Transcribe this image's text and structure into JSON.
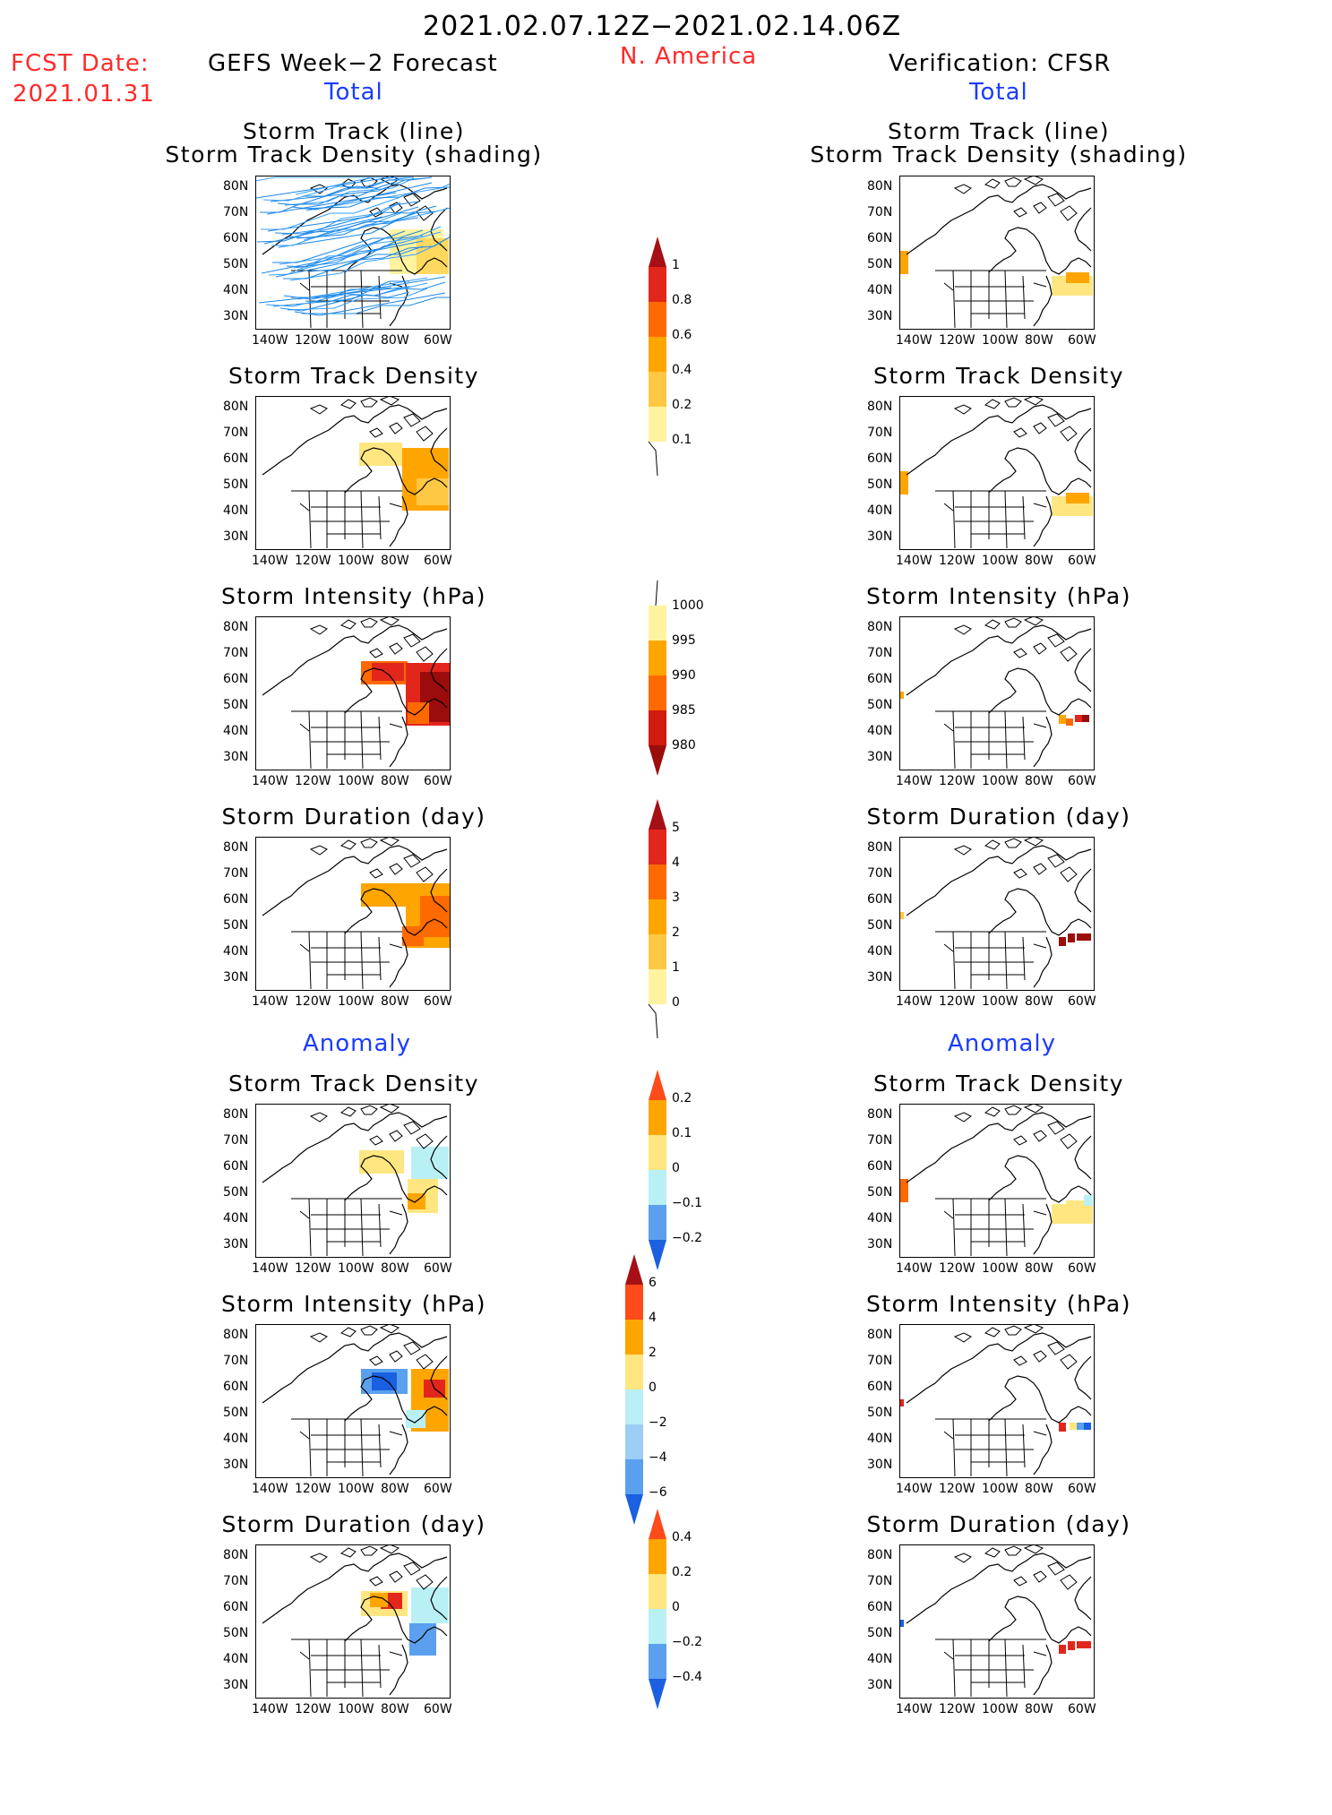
{
  "header": {
    "date_range": "2021.02.07.12Z−2021.02.14.06Z",
    "region": "N. America",
    "fcst_label": "FCST Date:",
    "fcst_date": "2021.01.31",
    "left_title": "GEFS Week−2 Forecast",
    "right_title": "Verification: CFSR",
    "left_total": "Total",
    "right_total": "Total",
    "left_anomaly": "Anomaly",
    "right_anomaly": "Anomaly"
  },
  "panels": {
    "track_title_1": "Storm Track (line)",
    "track_title_2": "Storm Track Density (shading)",
    "density": "Storm Track Density",
    "intensity": "Storm Intensity (hPa)",
    "duration": "Storm Duration (day)"
  },
  "axes": {
    "lat": [
      "80N",
      "70N",
      "60N",
      "50N",
      "40N",
      "30N"
    ],
    "lon": [
      "140W",
      "120W",
      "100W",
      "80W",
      "60W"
    ]
  },
  "colorbars": {
    "density_total": {
      "labels": [
        "1",
        "0.8",
        "0.6",
        "0.4",
        "0.2",
        "0.1"
      ],
      "colors": [
        "#a50f15",
        "#e2261c",
        "#ff6a00",
        "#ffa500",
        "#ffc844",
        "#fff3a0"
      ]
    },
    "intensity_total": {
      "labels": [
        "1000",
        "995",
        "990",
        "985",
        "980"
      ],
      "colors": [
        "#fff3a0",
        "#ffa500",
        "#ff6a00",
        "#d01b10",
        "#9b0c0c"
      ]
    },
    "duration_total": {
      "labels": [
        "5",
        "4",
        "3",
        "2",
        "1",
        "0"
      ],
      "colors": [
        "#a50f15",
        "#e2261c",
        "#ff6a00",
        "#ffa500",
        "#ffc844",
        "#fff3a0"
      ]
    },
    "density_anom": {
      "labels": [
        "0.2",
        "0.1",
        "0",
        "−0.1",
        "−0.2"
      ],
      "colors": [
        "#ff4a1a",
        "#ffa500",
        "#ffe680",
        "#b8f0f5",
        "#5aa0ee",
        "#1a60e0"
      ]
    },
    "intensity_anom": {
      "labels": [
        "6",
        "4",
        "2",
        "0",
        "−2",
        "−4",
        "−6"
      ],
      "colors": [
        "#a50f15",
        "#ff4a1a",
        "#ffa500",
        "#ffe680",
        "#b8f0f5",
        "#9ccdf5",
        "#5aa0ee",
        "#1a60e0"
      ]
    },
    "duration_anom": {
      "labels": [
        "0.4",
        "0.2",
        "0",
        "−0.2",
        "−0.4"
      ],
      "colors": [
        "#ff4a1a",
        "#ffa500",
        "#ffe680",
        "#b8f0f5",
        "#5aa0ee",
        "#1a60e0"
      ]
    }
  }
}
